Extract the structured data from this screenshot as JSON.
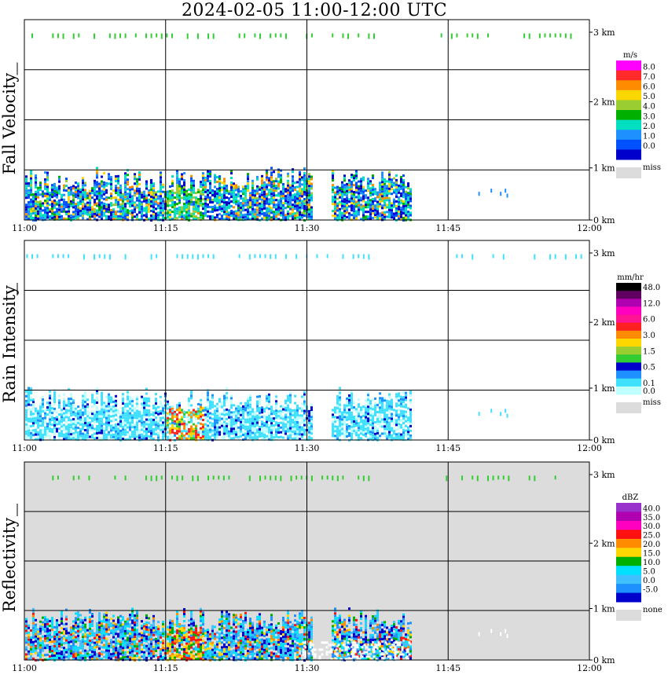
{
  "title": "2024-02-05  11:00-12:00 UTC",
  "colors": {
    "frame": "#000000",
    "missing": "#dcdcdc"
  },
  "chart_data": [
    {
      "type": "heatmap",
      "panel_label": "Fall Velocity",
      "xlim": [
        "11:00",
        "12:00"
      ],
      "ylim_km": [
        0,
        3.2
      ],
      "x_ticks": [
        "11:00",
        "11:15",
        "11:30",
        "11:45",
        "12:00"
      ],
      "y_ticks": [
        {
          "value": 0,
          "label": "0 km"
        },
        {
          "value": 1,
          "label": "1 km"
        },
        {
          "value": 2,
          "label": "2 km"
        },
        {
          "value": 3,
          "label": "3 km"
        }
      ],
      "colorbar": {
        "unit": "m/s",
        "levels": [
          {
            "label": "8.0",
            "color": "#ff00ff"
          },
          {
            "label": "7.0",
            "color": "#ff2a2a"
          },
          {
            "label": "6.0",
            "color": "#ff8c00"
          },
          {
            "label": "5.0",
            "color": "#ffd700"
          },
          {
            "label": "4.0",
            "color": "#9acd32"
          },
          {
            "label": "3.0",
            "color": "#00b000"
          },
          {
            "label": "2.0",
            "color": "#00e0c0"
          },
          {
            "label": "1.0",
            "color": "#1e90ff"
          },
          {
            "label": "0.0",
            "color": "#0050ff"
          },
          {
            "label": "",
            "color": "#0000cd"
          }
        ],
        "missing_label": "miss"
      }
    },
    {
      "type": "heatmap",
      "panel_label": "Rain Intensity",
      "xlim": [
        "11:00",
        "12:00"
      ],
      "ylim_km": [
        0,
        3.2
      ],
      "x_ticks": [
        "11:00",
        "11:15",
        "11:30",
        "11:45",
        "12:00"
      ],
      "y_ticks": [
        {
          "value": 0,
          "label": "0 km"
        },
        {
          "value": 1,
          "label": "1 km"
        },
        {
          "value": 2,
          "label": "2 km"
        },
        {
          "value": 3,
          "label": "3 km"
        }
      ],
      "colorbar": {
        "unit": "mm/hr",
        "levels": [
          {
            "label": "48.0",
            "color": "#000000"
          },
          {
            "label": "",
            "color": "#600060"
          },
          {
            "label": "12.0",
            "color": "#b000b0"
          },
          {
            "label": "",
            "color": "#ff00c0"
          },
          {
            "label": "6.0",
            "color": "#ff1493"
          },
          {
            "label": "",
            "color": "#ff2020"
          },
          {
            "label": "3.0",
            "color": "#ff8c00"
          },
          {
            "label": "",
            "color": "#ffd700"
          },
          {
            "label": "1.5",
            "color": "#9acd32"
          },
          {
            "label": "",
            "color": "#32cd32"
          },
          {
            "label": "0.5",
            "color": "#0000cd"
          },
          {
            "label": "",
            "color": "#1e90ff"
          },
          {
            "label": "0.1",
            "color": "#40e0ff"
          },
          {
            "label": "0.0",
            "color": "#c0ffff"
          }
        ],
        "missing_label": "miss"
      }
    },
    {
      "type": "heatmap",
      "panel_label": "Reflectivity",
      "xlim": [
        "11:00",
        "12:00"
      ],
      "ylim_km": [
        0,
        3.2
      ],
      "x_ticks": [
        "11:00",
        "11:15",
        "11:30",
        "11:45",
        "12:00"
      ],
      "y_ticks": [
        {
          "value": 0,
          "label": "0 km"
        },
        {
          "value": 1,
          "label": "1 km"
        },
        {
          "value": 2,
          "label": "2 km"
        },
        {
          "value": 3,
          "label": "3 km"
        }
      ],
      "background": "#dcdcdc",
      "colorbar": {
        "unit": "dBZ",
        "levels": [
          {
            "label": "40.0",
            "color": "#9932cc"
          },
          {
            "label": "35.0",
            "color": "#b000b0"
          },
          {
            "label": "30.0",
            "color": "#ff00c0"
          },
          {
            "label": "25.0",
            "color": "#ff1010"
          },
          {
            "label": "20.0",
            "color": "#ff8c00"
          },
          {
            "label": "15.0",
            "color": "#ffd700"
          },
          {
            "label": "10.0",
            "color": "#00b000"
          },
          {
            "label": "5.0",
            "color": "#00e0ff"
          },
          {
            "label": "0.0",
            "color": "#40c0ff"
          },
          {
            "label": "-5.0",
            "color": "#1e90ff"
          },
          {
            "label": "",
            "color": "#0000cd"
          }
        ],
        "missing_label": "none"
      }
    }
  ]
}
